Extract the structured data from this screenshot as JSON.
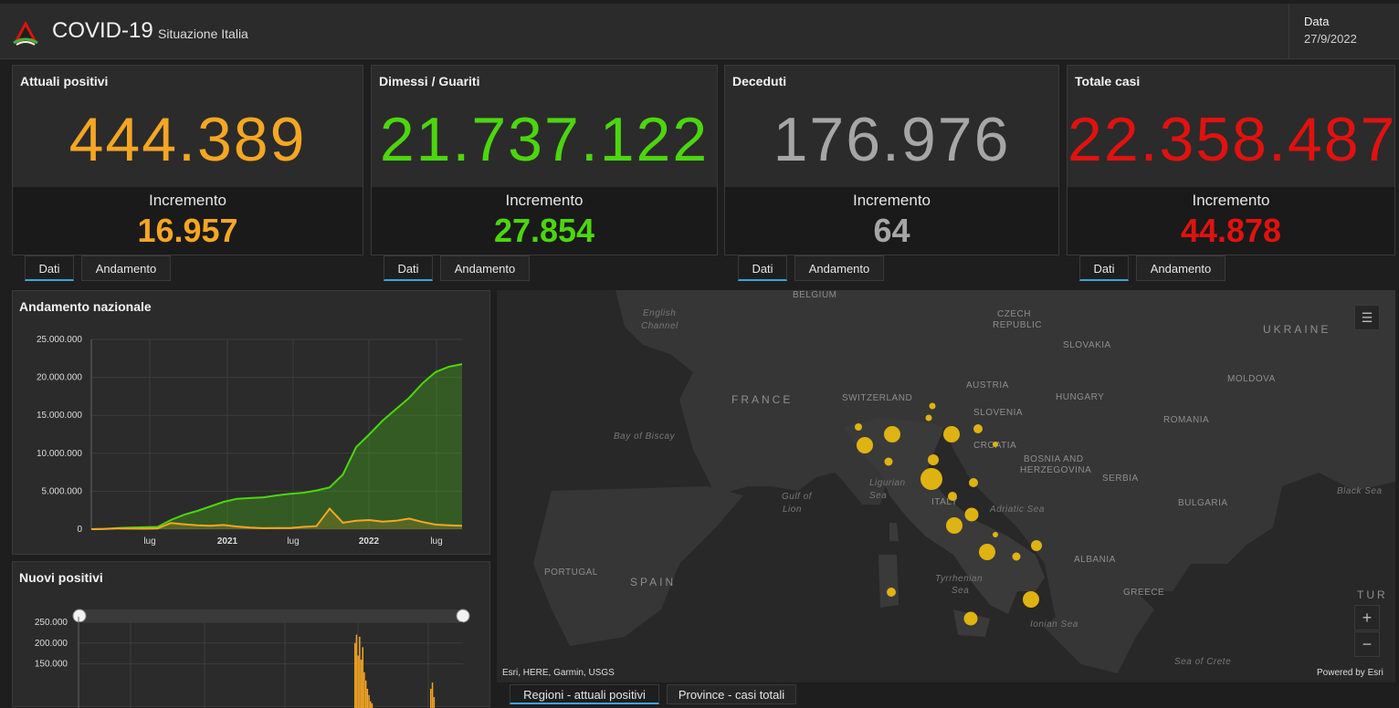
{
  "header": {
    "title": "COVID-19",
    "subtitle": "Situazione Italia",
    "date_label": "Data",
    "date_value": "27/9/2022"
  },
  "colors": {
    "orange": "#f5a623",
    "green": "#4cd60f",
    "gray": "#a6a6a6",
    "red": "#e0120f",
    "tab_accent": "#3da5e0"
  },
  "cards": [
    {
      "title": "Attuali positivi",
      "value": "444.389",
      "increment_label": "Incremento",
      "increment": "16.957",
      "color": "#f5a623"
    },
    {
      "title": "Dimessi / Guariti",
      "value": "21.737.122",
      "increment_label": "Incremento",
      "increment": "27.854",
      "color": "#4cd60f"
    },
    {
      "title": "Deceduti",
      "value": "176.976",
      "increment_label": "Incremento",
      "increment": "64",
      "color": "#a6a6a6"
    },
    {
      "title": "Totale casi",
      "value": "22.358.487",
      "increment_label": "Incremento",
      "increment": "44.878",
      "color": "#e0120f"
    }
  ],
  "card_tabs": {
    "dati": "Dati",
    "andamento": "Andamento"
  },
  "andamento": {
    "title": "Andamento nazionale",
    "chart_data": {
      "type": "area",
      "title": "Andamento nazionale",
      "y_ticks": [
        "25.000.000",
        "20.000.000",
        "15.000.000",
        "10.000.000",
        "5.000.000",
        "0"
      ],
      "x_ticks": [
        "lug",
        "2021",
        "lug",
        "2022",
        "lug"
      ],
      "ylim": [
        0,
        25000000
      ],
      "grid": true,
      "series": [
        {
          "color": "#4cd60f",
          "values": [
            0,
            50000,
            150000,
            220000,
            250000,
            300000,
            1200000,
            1900000,
            2400000,
            3000000,
            3600000,
            4000000,
            4100000,
            4200000,
            4450000,
            4650000,
            4800000,
            5100000,
            5500000,
            7200000,
            10800000,
            12500000,
            14300000,
            15800000,
            17300000,
            19200000,
            20700000,
            21400000,
            21737122
          ]
        },
        {
          "color": "#f5a623",
          "values": [
            0,
            20000,
            100000,
            70000,
            60000,
            80000,
            800000,
            650000,
            500000,
            450000,
            550000,
            350000,
            200000,
            130000,
            140000,
            150000,
            300000,
            400000,
            2700000,
            850000,
            1100000,
            1200000,
            1000000,
            1100000,
            1400000,
            950000,
            600000,
            500000,
            444389
          ]
        }
      ]
    }
  },
  "nuovi": {
    "title": "Nuovi positivi",
    "chart_data": {
      "type": "bar",
      "title": "Nuovi positivi",
      "y_ticks": [
        "250.000",
        "200.000",
        "150.000"
      ],
      "ylim": [
        0,
        250000
      ],
      "grid": true,
      "series": [
        {
          "color": "#f5a623",
          "values": [
            200000,
            220000,
            170000,
            215000,
            160000,
            190000,
            130000,
            110000,
            90000,
            75000,
            60000,
            55000
          ]
        }
      ],
      "secondary_values": [
        90000,
        105000,
        70000
      ]
    }
  },
  "map": {
    "labels": [
      {
        "t": "BELGIUM",
        "cls": ""
      },
      {
        "t": "English",
        "cls": "sea"
      },
      {
        "t": "Channel",
        "cls": "sea"
      },
      {
        "t": "CZECH",
        "cls": ""
      },
      {
        "t": "REPUBLIC",
        "cls": ""
      },
      {
        "t": "SLOVAKIA",
        "cls": ""
      },
      {
        "t": "UKRAINE",
        "cls": "big"
      },
      {
        "t": "FRANCE",
        "cls": "big"
      },
      {
        "t": "SWITZERLAND",
        "cls": ""
      },
      {
        "t": "AUSTRIA",
        "cls": ""
      },
      {
        "t": "HUNGARY",
        "cls": ""
      },
      {
        "t": "MOLDOVA",
        "cls": ""
      },
      {
        "t": "SLOVENIA",
        "cls": ""
      },
      {
        "t": "ROMANIA",
        "cls": ""
      },
      {
        "t": "CROATIA",
        "cls": ""
      },
      {
        "t": "Bay of Biscay",
        "cls": "sea"
      },
      {
        "t": "BOSNIA AND",
        "cls": ""
      },
      {
        "t": "HERZEGOVINA",
        "cls": ""
      },
      {
        "t": "SERBIA",
        "cls": ""
      },
      {
        "t": "Ligurian",
        "cls": "sea"
      },
      {
        "t": "Sea",
        "cls": "sea"
      },
      {
        "t": "Gulf of",
        "cls": "sea"
      },
      {
        "t": "Lion",
        "cls": "sea"
      },
      {
        "t": "ITALY",
        "cls": ""
      },
      {
        "t": "Adriatic Sea",
        "cls": "sea"
      },
      {
        "t": "BULGARIA",
        "cls": ""
      },
      {
        "t": "Black Sea",
        "cls": "sea"
      },
      {
        "t": "PORTUGAL",
        "cls": ""
      },
      {
        "t": "SPAIN",
        "cls": "big"
      },
      {
        "t": "Tyrrhenian",
        "cls": "sea"
      },
      {
        "t": "Sea",
        "cls": "sea"
      },
      {
        "t": "ALBANIA",
        "cls": ""
      },
      {
        "t": "GREECE",
        "cls": ""
      },
      {
        "t": "TUR",
        "cls": "big"
      },
      {
        "t": "Ionian Sea",
        "cls": "sea"
      },
      {
        "t": "Sea of Crete",
        "cls": "sea"
      }
    ],
    "attribution": "Esri, HERE, Garmin, USGS",
    "powered_by": "Powered by Esri",
    "zoom_in": "+",
    "zoom_out": "−"
  },
  "map_tabs": [
    "Regioni - attuali positivi",
    "Province - casi totali"
  ]
}
